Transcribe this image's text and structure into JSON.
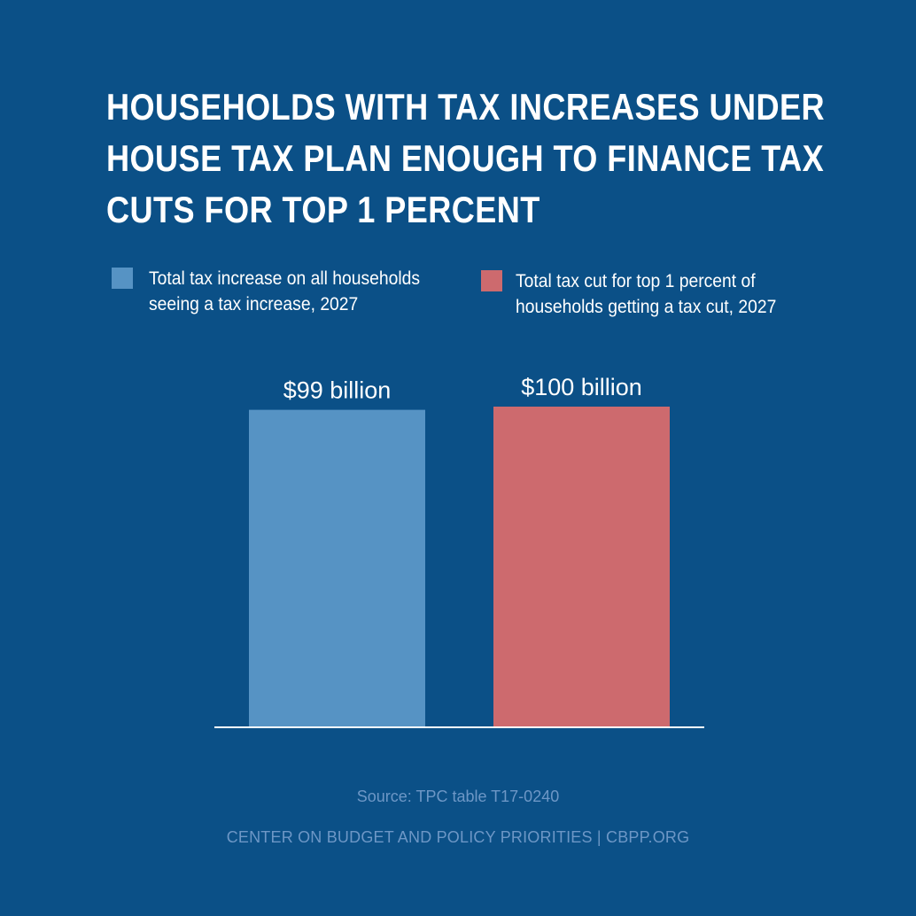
{
  "chart_data": {
    "type": "bar",
    "title_lines": [
      "HOUSEHOLDS WITH TAX INCREASES UNDER",
      "HOUSE TAX PLAN ENOUGH TO FINANCE TAX",
      "CUTS FOR TOP 1 PERCENT"
    ],
    "categories": [
      "Total tax increase on all households seeing a tax increase, 2027",
      "Total tax cut for top 1 percent of households getting a tax cut, 2027"
    ],
    "values": [
      99,
      100
    ],
    "unit": "billion dollars",
    "data_labels": [
      "$99 billion",
      "$100 billion"
    ],
    "colors": [
      "#5693c4",
      "#cd6a6e"
    ],
    "ylim": [
      0,
      100
    ],
    "grid": false,
    "axes_visible": false,
    "legend": {
      "placement": "top",
      "items": [
        {
          "label_lines": [
            "Total tax increase on all households",
            "seeing a tax increase, 2027"
          ],
          "color": "#5693c4"
        },
        {
          "label_lines": [
            "Total tax cut for top 1 percent of",
            "households getting a tax cut, 2027"
          ],
          "color": "#cd6a6e"
        }
      ]
    }
  },
  "source": "Source: TPC table T17-0240",
  "footer": "CENTER ON BUDGET AND POLICY PRIORITIES | CBPP.ORG",
  "colors": {
    "background": "#0b5087",
    "baseline": "#ffffff",
    "muted_text": "#6d97c6"
  }
}
